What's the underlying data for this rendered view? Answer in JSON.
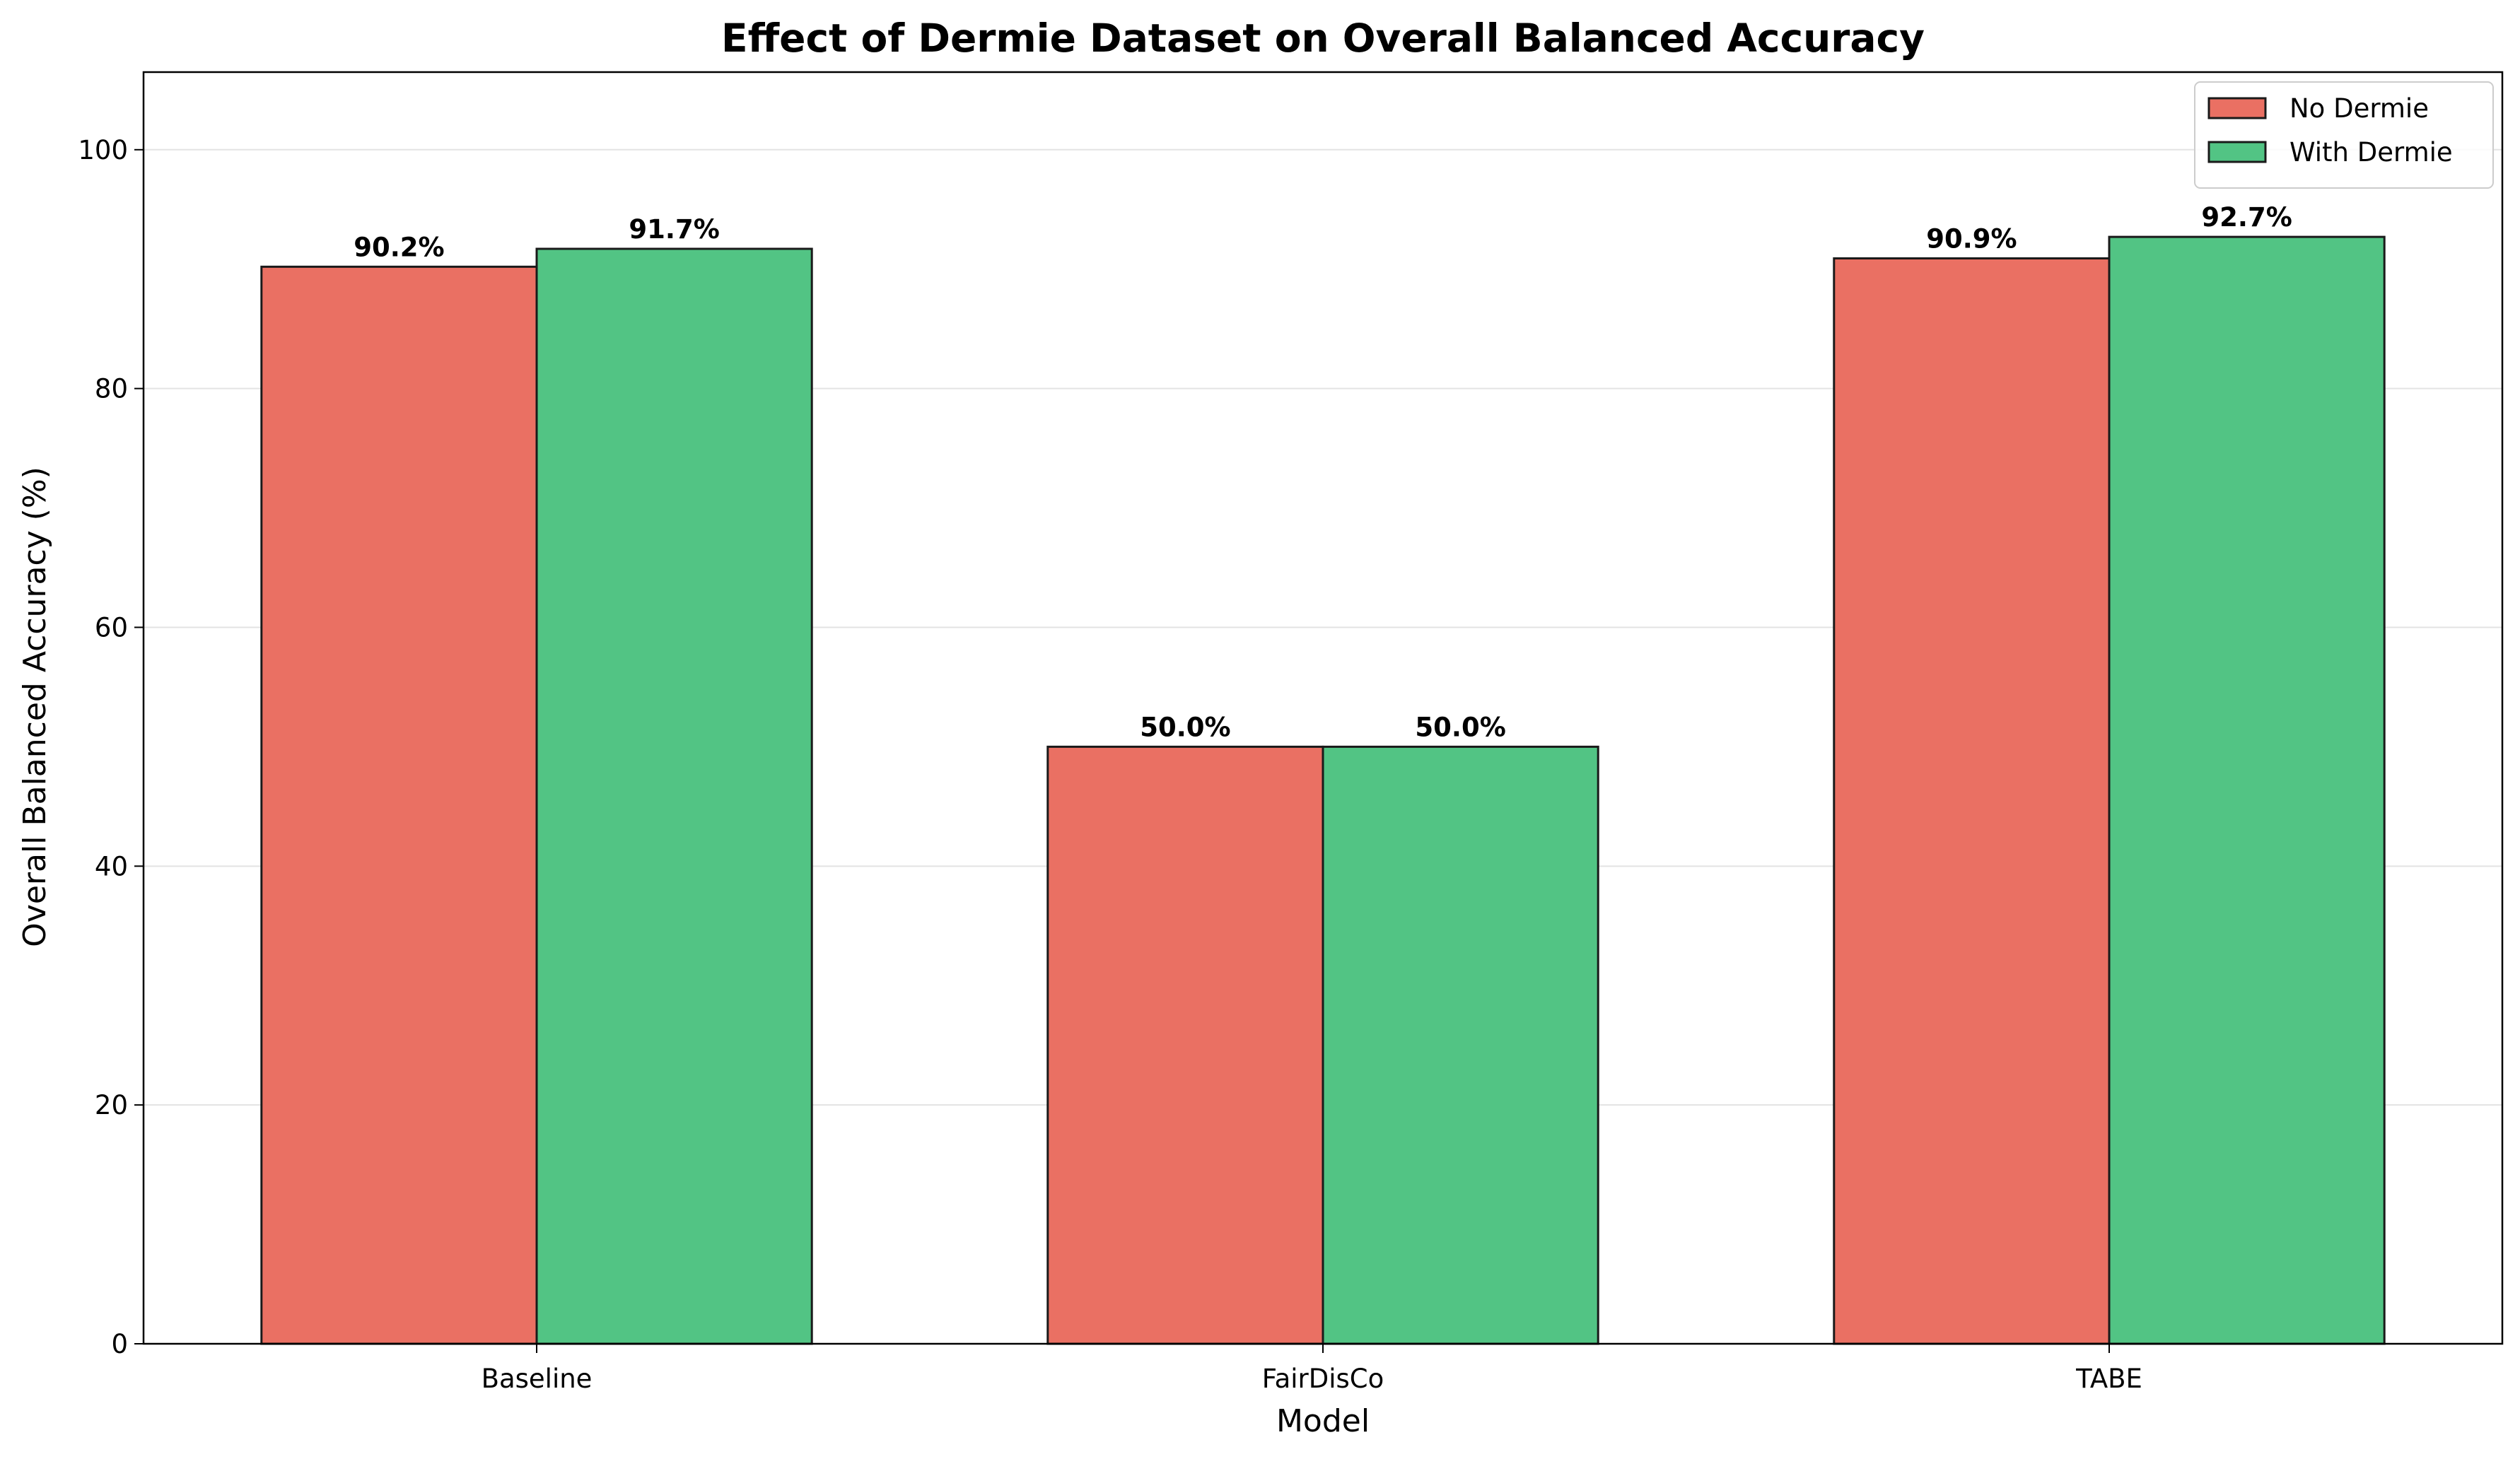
{
  "chart_data": {
    "type": "bar",
    "title": "Effect of Dermie Dataset on Overall Balanced Accuracy",
    "xlabel": "Model",
    "ylabel": "Overall Balanced Accuracy (%)",
    "categories": [
      "Baseline",
      "FairDisCo",
      "TABE"
    ],
    "series": [
      {
        "name": "No Dermie",
        "color": "#ea7063",
        "values": [
          90.2,
          50.0,
          90.9
        ]
      },
      {
        "name": "With Dermie",
        "color": "#52c484",
        "values": [
          91.7,
          50.0,
          92.7
        ]
      }
    ],
    "value_labels": [
      [
        "90.2%",
        "50.0%",
        "90.9%"
      ],
      [
        "91.7%",
        "50.0%",
        "92.7%"
      ]
    ],
    "ylim": [
      0,
      106.5
    ],
    "yticks": [
      0,
      20,
      40,
      60,
      80,
      100
    ],
    "grid": "horizontal",
    "legend_position": "top-right"
  }
}
